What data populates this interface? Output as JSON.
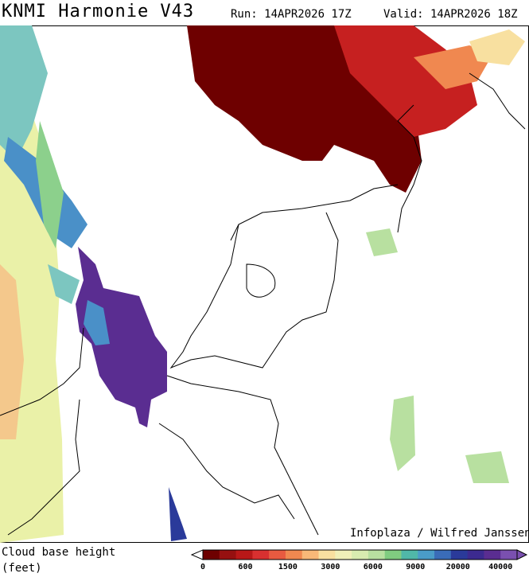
{
  "header": {
    "title": "KNMI Harmonie V43",
    "run": "Run: 14APR2026 17Z",
    "valid": "Valid: 14APR2026 18Z"
  },
  "credit": "Infoplaza / Wilfred Janssen",
  "legend": {
    "title": [
      "Cloud base height",
      "(feet)"
    ],
    "colors": [
      "#6e0000",
      "#961010",
      "#b81818",
      "#d83030",
      "#e85a40",
      "#f08850",
      "#f8b878",
      "#f8e0a0",
      "#f0f0b8",
      "#d8ecb0",
      "#b8e0a0",
      "#80cc80",
      "#50b8a8",
      "#4a9cc8",
      "#3a6cb8",
      "#2a3a9a",
      "#3c2a90",
      "#5a2d91",
      "#7a50b0"
    ],
    "ticks": [
      0,
      600,
      1500,
      3000,
      6000,
      9000,
      20000,
      40000
    ]
  }
}
